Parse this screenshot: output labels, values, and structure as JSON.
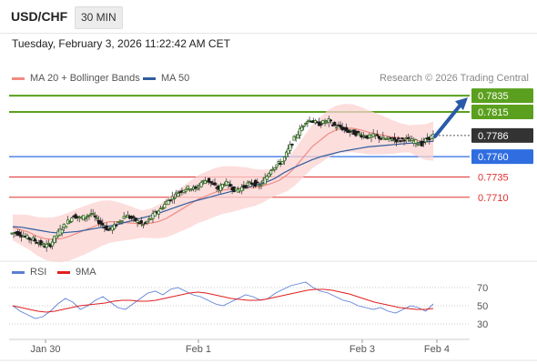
{
  "header": {
    "symbol": "USD/CHF",
    "timeframe": "30 MIN"
  },
  "datetime": "Tuesday, February 3, 2026 11:22:42 AM CET",
  "credit": "Research © 2026 Trading Central",
  "legend": [
    {
      "label": "MA 20 + Bollinger Bands",
      "color": "#f28b82"
    },
    {
      "label": "MA 50",
      "color": "#2f5d9e"
    }
  ],
  "rsi_legend": [
    {
      "label": "RSI",
      "color": "#5b7fd6"
    },
    {
      "label": "9MA",
      "color": "#e02020"
    }
  ],
  "chart_data": [
    {
      "type": "candlestick",
      "title": "USD/CHF",
      "ylim": [
        0.7637,
        0.7843
      ],
      "x_ticks": [
        "Jan 30",
        "Feb 1",
        "Feb 3",
        "Feb 4"
      ],
      "levels": [
        {
          "value": 0.7835,
          "label": "0.7835",
          "kind": "target",
          "color": "#5aa01e"
        },
        {
          "value": 0.7815,
          "label": "0.7815",
          "kind": "target",
          "color": "#5aa01e"
        },
        {
          "value": 0.7786,
          "label": "0.7786",
          "kind": "last-price",
          "color": "#333333"
        },
        {
          "value": 0.776,
          "label": "0.7760",
          "kind": "pivot",
          "color": "#2f6de0"
        },
        {
          "value": 0.7735,
          "label": "0.7735",
          "kind": "support",
          "color": "#e03030"
        },
        {
          "value": 0.771,
          "label": "0.7710",
          "kind": "support",
          "color": "#e03030"
        }
      ],
      "close_path": [
        0.7665,
        0.7667,
        0.7664,
        0.766,
        0.7658,
        0.7654,
        0.765,
        0.7652,
        0.7663,
        0.7672,
        0.768,
        0.7688,
        0.7684,
        0.7686,
        0.769,
        0.7682,
        0.7676,
        0.767,
        0.7674,
        0.7682,
        0.7688,
        0.7684,
        0.768,
        0.7676,
        0.7682,
        0.769,
        0.7696,
        0.7704,
        0.771,
        0.7716,
        0.772,
        0.7722,
        0.772,
        0.7728,
        0.7732,
        0.7725,
        0.772,
        0.7728,
        0.7724,
        0.7718,
        0.7722,
        0.7726,
        0.7728,
        0.7724,
        0.7732,
        0.7745,
        0.775,
        0.7754,
        0.7768,
        0.7782,
        0.7792,
        0.7804,
        0.7805,
        0.78,
        0.7802,
        0.7804,
        0.7798,
        0.7796,
        0.7792,
        0.779,
        0.7788,
        0.7786,
        0.7784,
        0.7786,
        0.7783,
        0.7781,
        0.7782,
        0.778,
        0.7782,
        0.778,
        0.7778,
        0.7776,
        0.7782,
        0.7786
      ],
      "ma20_path": [
        0.7673,
        0.767,
        0.7667,
        0.7662,
        0.7659,
        0.7658,
        0.7659,
        0.7662,
        0.7666,
        0.767,
        0.7674,
        0.7678,
        0.768,
        0.768,
        0.7679,
        0.7678,
        0.7677,
        0.7678,
        0.768,
        0.7684,
        0.769,
        0.7696,
        0.7702,
        0.7708,
        0.7712,
        0.7716,
        0.7719,
        0.772,
        0.7721,
        0.7722,
        0.7722,
        0.7724,
        0.7727,
        0.7731,
        0.7738,
        0.7748,
        0.776,
        0.7772,
        0.778,
        0.7788,
        0.7793,
        0.7795,
        0.7795,
        0.7793,
        0.779,
        0.7788,
        0.7786,
        0.7784,
        0.7783,
        0.7782,
        0.778,
        0.7778,
        0.7779
      ],
      "ma50_path": [
        0.7674,
        0.7673,
        0.7671,
        0.7669,
        0.7667,
        0.7666,
        0.7667,
        0.7668,
        0.767,
        0.7672,
        0.7674,
        0.7676,
        0.7679,
        0.7682,
        0.7685,
        0.7688,
        0.7692,
        0.7696,
        0.77,
        0.7704,
        0.7707,
        0.771,
        0.7713,
        0.7716,
        0.7719,
        0.7722,
        0.7725,
        0.7728,
        0.7733,
        0.774,
        0.7746,
        0.7751,
        0.7756,
        0.776,
        0.7763,
        0.7766,
        0.7768,
        0.777,
        0.7772,
        0.7773,
        0.7774,
        0.7775,
        0.7776,
        0.7777,
        0.7778,
        0.7779
      ],
      "forecast_arrow": {
        "from": 0.7786,
        "to": 0.7835
      }
    },
    {
      "type": "line",
      "title": "RSI",
      "ylim": [
        20,
        80
      ],
      "y_ticks": [
        70,
        50,
        30
      ],
      "series": [
        {
          "name": "RSI",
          "values": [
            50,
            44,
            40,
            36,
            38,
            44,
            52,
            58,
            54,
            46,
            50,
            56,
            60,
            54,
            48,
            46,
            52,
            58,
            64,
            66,
            62,
            68,
            70,
            66,
            62,
            60,
            56,
            52,
            50,
            54,
            58,
            62,
            60,
            56,
            58,
            64,
            68,
            72,
            74,
            76,
            70,
            66,
            64,
            60,
            56,
            54,
            50,
            48,
            46,
            48,
            44,
            42,
            46,
            50,
            48,
            44,
            52
          ]
        },
        {
          "name": "9MA",
          "values": [
            50,
            48,
            46,
            44,
            43,
            44,
            46,
            48,
            50,
            51,
            52,
            53,
            55,
            56,
            56,
            55,
            55,
            56,
            58,
            60,
            62,
            64,
            65,
            64,
            62,
            60,
            58,
            57,
            56,
            56,
            57,
            59,
            61,
            63,
            65,
            67,
            68,
            68,
            67,
            65,
            63,
            60,
            57,
            54,
            52,
            50,
            48,
            47,
            46,
            46,
            47
          ]
        }
      ]
    }
  ]
}
